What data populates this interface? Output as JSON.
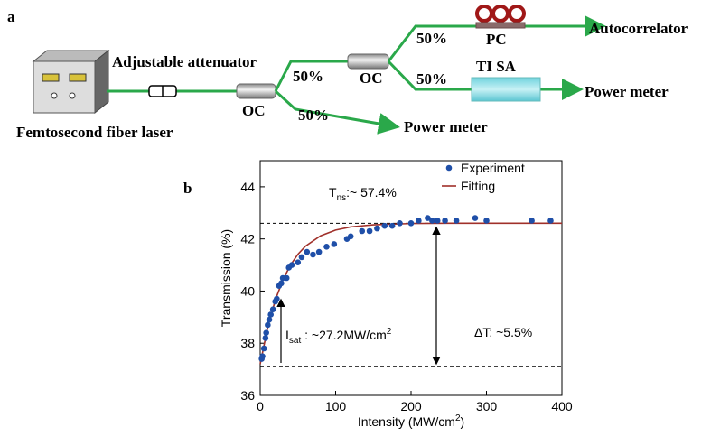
{
  "diagram": {
    "panel_label": "a",
    "attenuator": "Adjustable attenuator",
    "laser": "Femtosecond fiber laser",
    "couplers": [
      "OC",
      "OC"
    ],
    "ratios": [
      "50%",
      "50%",
      "50%",
      "50%"
    ],
    "pc": "PC",
    "sa": "TI SA",
    "autocorrelator": "Autocorrelator",
    "power_meters": [
      "Power meter",
      "Power meter"
    ]
  },
  "chart_panel_label": "b",
  "chart_data": {
    "type": "scatter",
    "x_label": [
      "Intensity (MW/cm",
      "2",
      ")"
    ],
    "y_label": "Transmission (%)",
    "xlim": [
      0,
      400
    ],
    "xticks": [
      0,
      100,
      200,
      300,
      400
    ],
    "ylim": [
      36,
      45
    ],
    "yticks": [
      36,
      38,
      40,
      42,
      44
    ],
    "hlines": [
      42.6,
      37.1
    ],
    "legend": "upper right",
    "annotations": [
      [
        "T",
        "ns",
        ":~ 57.4%"
      ],
      [
        "I",
        "sat",
        " : ~27.2MW/cm",
        "2"
      ],
      [
        "ΔT: ~5.5%"
      ]
    ],
    "series": [
      {
        "name": "Experiment",
        "color": "#1f4fa8",
        "x": [
          2,
          3,
          5,
          7,
          8,
          10,
          12,
          14,
          17,
          20,
          22,
          25,
          28,
          30,
          35,
          38,
          42,
          50,
          55,
          62,
          70,
          78,
          88,
          98,
          115,
          120,
          135,
          145,
          155,
          165,
          175,
          185,
          200,
          210,
          222,
          228,
          235,
          245,
          260,
          285,
          300,
          360,
          385
        ],
        "values": [
          37.4,
          37.5,
          37.8,
          38.2,
          38.4,
          38.7,
          38.9,
          39.1,
          39.3,
          39.6,
          39.7,
          40.2,
          40.3,
          40.5,
          40.5,
          40.9,
          41.0,
          41.1,
          41.3,
          41.5,
          41.4,
          41.5,
          41.7,
          41.8,
          42.0,
          42.1,
          42.3,
          42.3,
          42.4,
          42.5,
          42.5,
          42.6,
          42.6,
          42.7,
          42.8,
          42.7,
          42.7,
          42.7,
          42.7,
          42.8,
          42.7,
          42.7,
          42.7
        ]
      },
      {
        "name": "Fitting",
        "color": "#a0302a",
        "x": [
          0,
          10,
          20,
          30,
          40,
          50,
          60,
          80,
          100,
          120,
          150,
          200,
          250,
          300,
          350,
          400
        ],
        "values": [
          37.2,
          38.61,
          39.65,
          40.42,
          40.99,
          41.41,
          41.72,
          42.12,
          42.34,
          42.46,
          42.54,
          42.59,
          42.6,
          42.6,
          42.6,
          42.6
        ]
      }
    ]
  }
}
